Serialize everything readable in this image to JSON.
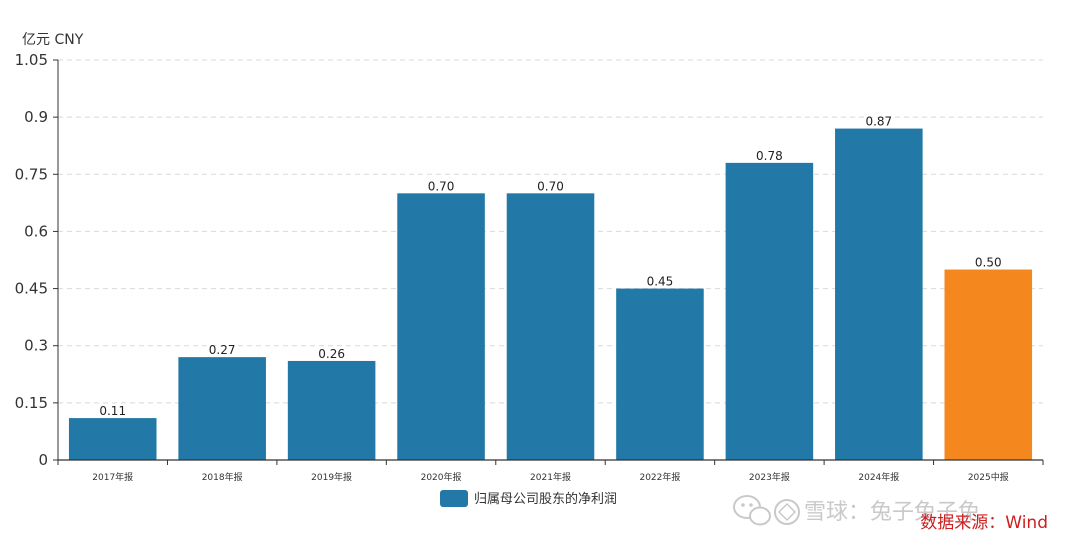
{
  "chart_data": {
    "type": "bar",
    "unit_label": "亿元  CNY",
    "categories": [
      "2017年报",
      "2018年报",
      "2019年报",
      "2020年报",
      "2021年报",
      "2022年报",
      "2023年报",
      "2024年报",
      "2025中报"
    ],
    "series": [
      {
        "name": "归属母公司股东的净利润",
        "values": [
          0.11,
          0.27,
          0.26,
          0.7,
          0.7,
          0.45,
          0.78,
          0.87,
          0.5
        ],
        "data_labels": [
          "0.11",
          "0.27",
          "0.26",
          "0.70",
          "0.70",
          "0.45",
          "0.78",
          "0.87",
          "0.50"
        ]
      }
    ],
    "ylim": [
      0,
      1.05
    ],
    "yticks": [
      "0",
      "0.15",
      "0.3",
      "0.45",
      "0.6",
      "0.75",
      "0.9",
      "1.05"
    ],
    "grid": true,
    "legend_position": "bottom",
    "colors": {
      "bar": "#2278a6",
      "highlight": "#f5871f",
      "source": "#cc1f1f"
    },
    "highlight_category": "2025中报",
    "source": "数据来源：Wind",
    "watermark": "雪球：兔子兔子兔"
  }
}
